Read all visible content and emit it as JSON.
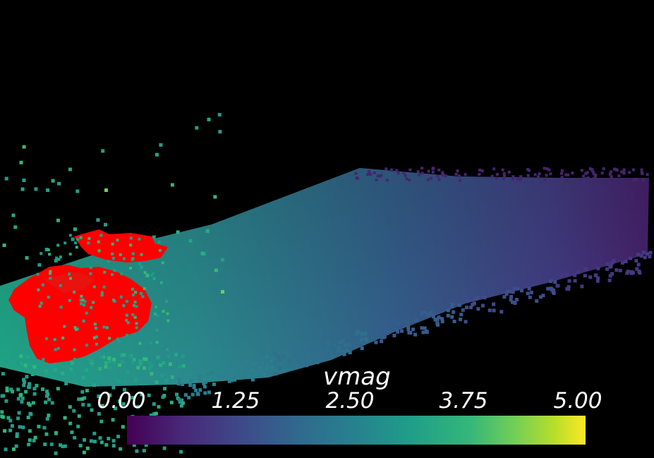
{
  "scalar_bar": {
    "title": "vmag",
    "ticks": [
      "0.00",
      "1.25",
      "2.50",
      "3.75",
      "5.00"
    ],
    "range": [
      0.0,
      5.0
    ],
    "colormap": "viridis"
  },
  "scene": {
    "background": "#000000",
    "highlight_color": "#ff0000",
    "rendering": "point-cloud"
  }
}
